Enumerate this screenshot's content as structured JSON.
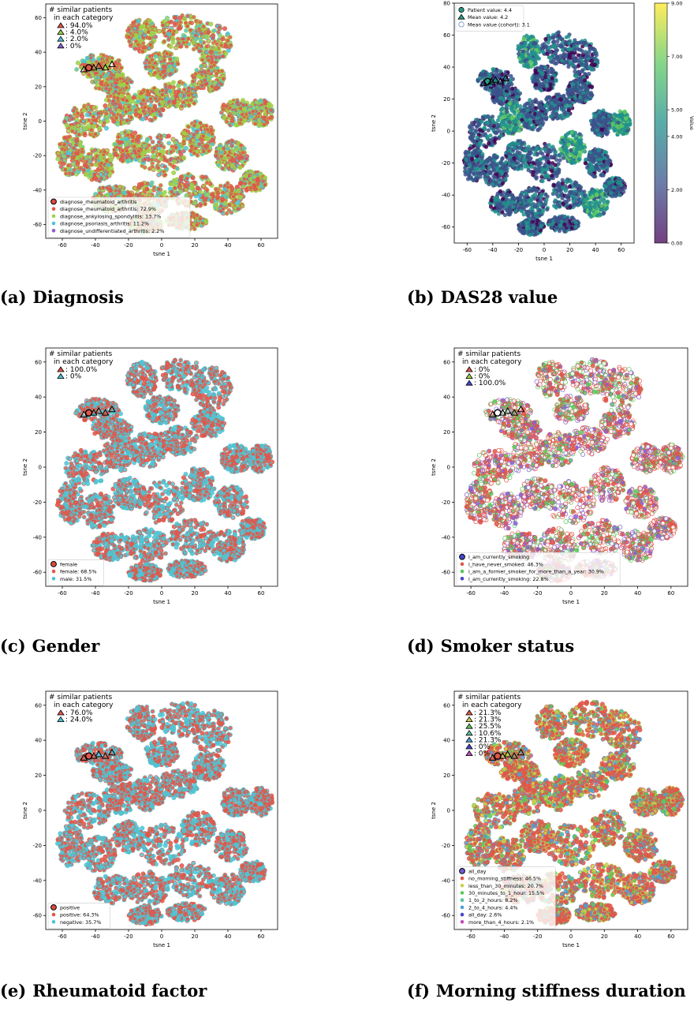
{
  "panels": [
    {
      "id": "a",
      "caption_label": "(a)",
      "caption_title": "Diagnosis",
      "xlabel": "tsne 1",
      "ylabel": "tsne 2",
      "xticks": [
        -60,
        -40,
        -20,
        0,
        20,
        40,
        60
      ],
      "yticks": [
        60,
        40,
        20,
        0,
        -20,
        -40,
        -60
      ],
      "inset_title": [
        "# similar patients",
        "in each category"
      ],
      "inset_entries": [
        {
          "text": ": 94.0%",
          "color": "#e0574a"
        },
        {
          "text": ": 4.0%",
          "color": "#9ed14a"
        },
        {
          "text": ": 2.0%",
          "color": "#4fc4d4"
        },
        {
          "text": ": 0%",
          "color": "#8a5fd0"
        }
      ],
      "legend": [
        {
          "text": "diagnose_rheumatoid_arthritis",
          "color": "#d94b3f",
          "header": true
        },
        {
          "text": "diagnose_rheumatoid_arthritis: 72.9%",
          "color": "#e0574a"
        },
        {
          "text": "diagnose_ankylosing_spondylitis: 13.7%",
          "color": "#9ed14a"
        },
        {
          "text": "diagnose_psoriasis_arthritis: 11.2%",
          "color": "#4fc4d4"
        },
        {
          "text": "diagnose_undifferentiated_arthritis: 2.2%",
          "color": "#8a5fd0"
        }
      ],
      "base_color": "#e0574a",
      "dot_colors": [
        "#9ed14a",
        "#9ed14a",
        "#e0574a",
        "#4fc4d4"
      ]
    },
    {
      "id": "b",
      "caption_label": "(b)",
      "caption_title": "DAS28 value",
      "xlabel": "tsne 1",
      "ylabel": "tsne 2",
      "xticks": [
        -60,
        -40,
        -20,
        0,
        20,
        40,
        60
      ],
      "yticks": [
        80,
        60,
        40,
        20,
        0,
        -20,
        -40,
        -60
      ],
      "legend": [
        {
          "text": "Patient value: 4.4",
          "color": "#2a9a86",
          "marker": "circle"
        },
        {
          "text": "Mean value: 4.2",
          "color": "#2a9a86",
          "marker": "triangle"
        },
        {
          "text": "Mean value (cohort): 3.1",
          "color": "#ffffff",
          "marker": "circle"
        }
      ],
      "colorbar_label": "Value",
      "colorbar_ticks": [
        "9.00",
        "7.00",
        "5.00",
        "4.00",
        "2.00",
        "0.00"
      ],
      "colorbar_colors": [
        "#440154",
        "#3b528b",
        "#21908c",
        "#5dc863",
        "#fde725"
      ]
    },
    {
      "id": "c",
      "caption_label": "(c)",
      "caption_title": "Gender",
      "xlabel": "tsne 1",
      "ylabel": "tsne 2",
      "xticks": [
        -60,
        -40,
        -20,
        0,
        20,
        40,
        60
      ],
      "yticks": [
        60,
        40,
        20,
        0,
        -20,
        -40,
        -60
      ],
      "inset_title": [
        "# similar patients",
        "in each category"
      ],
      "inset_entries": [
        {
          "text": ": 100.0%",
          "color": "#e0574a"
        },
        {
          "text": ": 0%",
          "color": "#4fc4d4"
        }
      ],
      "legend": [
        {
          "text": "female",
          "color": "#d94b3f",
          "header": true
        },
        {
          "text": "female: 68.5%",
          "color": "#e0574a"
        },
        {
          "text": "male: 31.5%",
          "color": "#4fc4d4"
        }
      ],
      "base_color": "#e0574a",
      "dot_colors": [
        "#4fc4d4",
        "#e0574a",
        "#4fc4d4"
      ]
    },
    {
      "id": "d",
      "caption_label": "(d)",
      "caption_title": "Smoker status",
      "xlabel": "tsne 1",
      "ylabel": "tsne 2",
      "xticks": [
        -60,
        -40,
        -20,
        0,
        20,
        40,
        60
      ],
      "yticks": [
        60,
        40,
        20,
        0,
        -20,
        -40,
        -60
      ],
      "inset_title": [
        "# similar patients",
        "in each category"
      ],
      "inset_entries": [
        {
          "text": ": 0%",
          "color": "#e0574a"
        },
        {
          "text": ": 0%",
          "color": "#9ed14a"
        },
        {
          "text": ": 100.0%",
          "color": "#4545d0"
        }
      ],
      "legend": [
        {
          "text": "i_am_currently_smoking",
          "color": "#4545d0",
          "header": true
        },
        {
          "text": "i_have_never_smoked: 46.3%",
          "color": "#e0574a"
        },
        {
          "text": "i_am_a_former_smoker_for_more_than_a_year: 30.9%",
          "color": "#5cc85c"
        },
        {
          "text": "i_am_currently_smoking: 22.8%",
          "color": "#4545d0"
        }
      ],
      "base_color": "#ffffff",
      "dot_colors": [
        "#e0574a",
        "#5cc85c",
        "#8a5fd0",
        "#e0574a"
      ]
    },
    {
      "id": "e",
      "caption_label": "(e)",
      "caption_title": "Rheumatoid factor",
      "xlabel": "tsne 1",
      "ylabel": "tsne 2",
      "xticks": [
        -60,
        -40,
        -20,
        0,
        20,
        40,
        60
      ],
      "yticks": [
        60,
        40,
        20,
        0,
        -20,
        -40,
        -60
      ],
      "inset_title": [
        "# similar patients",
        "in each category"
      ],
      "inset_entries": [
        {
          "text": ": 76.0%",
          "color": "#e0574a"
        },
        {
          "text": ": 24.0%",
          "color": "#4fc4d4"
        }
      ],
      "legend": [
        {
          "text": "positive",
          "color": "#d94b3f",
          "header": true
        },
        {
          "text": "positive: 64.3%",
          "color": "#e0574a"
        },
        {
          "text": "negative: 35.7%",
          "color": "#4fc4d4"
        }
      ],
      "base_color": "#e0574a",
      "dot_colors": [
        "#4fc4d4",
        "#4fc4d4",
        "#e0574a"
      ]
    },
    {
      "id": "f",
      "caption_label": "(f)",
      "caption_title": "Morning stiffness duration",
      "xlabel": "tsne 1",
      "ylabel": "tsne 2",
      "xticks": [
        -60,
        -40,
        -20,
        0,
        20,
        40,
        60
      ],
      "yticks": [
        60,
        40,
        20,
        0,
        -20,
        -40,
        -60
      ],
      "inset_title": [
        "# similar patients",
        "in each category"
      ],
      "inset_entries": [
        {
          "text": ": 21.3%",
          "color": "#e0574a"
        },
        {
          "text": ": 21.3%",
          "color": "#c8d24a"
        },
        {
          "text": ": 25.5%",
          "color": "#5cc85c"
        },
        {
          "text": ": 10.6%",
          "color": "#4fc4a0"
        },
        {
          "text": ": 21.3%",
          "color": "#4f9fd4"
        },
        {
          "text": ": 0%",
          "color": "#4545d0"
        },
        {
          "text": ": 0%",
          "color": "#c050c0"
        }
      ],
      "legend": [
        {
          "text": "all_day",
          "color": "#6a5fd0",
          "header": true
        },
        {
          "text": "no_morning_stiffness: 46.5%",
          "color": "#e0574a"
        },
        {
          "text": "less_than_30_minutes: 20.7%",
          "color": "#c8d24a"
        },
        {
          "text": "30_minutes_to_1_hour: 15.5%",
          "color": "#5cc85c"
        },
        {
          "text": "1_to_2_hours: 8.2%",
          "color": "#4fc4a0"
        },
        {
          "text": "2_to_4_hours: 4.4%",
          "color": "#4f9fd4"
        },
        {
          "text": "all_day: 2.6%",
          "color": "#4545d0"
        },
        {
          "text": "more_than_4_hours: 2.1%",
          "color": "#c050c0"
        }
      ],
      "base_color": "#e0574a",
      "dot_colors": [
        "#c8d24a",
        "#5cc85c",
        "#e0574a",
        "#4f9fd4",
        "#e0574a"
      ]
    }
  ],
  "chart_data": [
    {
      "type": "scatter",
      "panel": "a",
      "title": "",
      "xlabel": "tsne 1",
      "ylabel": "tsne 2",
      "xlim": [
        -70,
        70
      ],
      "ylim": [
        -68,
        68
      ],
      "series": [
        {
          "name": "diagnose_rheumatoid_arthritis: 72.9%"
        },
        {
          "name": "diagnose_ankylosing_spondylitis: 13.7%"
        },
        {
          "name": "diagnose_psoriasis_arthritis: 11.2%"
        },
        {
          "name": "diagnose_undifferentiated_arthritis: 2.2%"
        }
      ]
    },
    {
      "type": "scatter",
      "panel": "b",
      "title": "",
      "xlabel": "tsne 1",
      "ylabel": "tsne 2",
      "xlim": [
        -70,
        70
      ],
      "ylim": [
        -70,
        80
      ],
      "colorbar": [
        0,
        9
      ],
      "series": [
        {
          "name": "Patient value: 4.4"
        },
        {
          "name": "Mean value: 4.2"
        },
        {
          "name": "Mean value (cohort): 3.1"
        }
      ]
    },
    {
      "type": "scatter",
      "panel": "c",
      "title": "",
      "xlabel": "tsne 1",
      "ylabel": "tsne 2",
      "xlim": [
        -70,
        70
      ],
      "ylim": [
        -68,
        68
      ],
      "series": [
        {
          "name": "female: 68.5%"
        },
        {
          "name": "male: 31.5%"
        }
      ]
    },
    {
      "type": "scatter",
      "panel": "d",
      "title": "",
      "xlabel": "tsne 1",
      "ylabel": "tsne 2",
      "xlim": [
        -70,
        70
      ],
      "ylim": [
        -68,
        68
      ],
      "series": [
        {
          "name": "i_have_never_smoked: 46.3%"
        },
        {
          "name": "i_am_a_former_smoker_for_more_than_a_year: 30.9%"
        },
        {
          "name": "i_am_currently_smoking: 22.8%"
        }
      ]
    },
    {
      "type": "scatter",
      "panel": "e",
      "title": "",
      "xlabel": "tsne 1",
      "ylabel": "tsne 2",
      "xlim": [
        -70,
        70
      ],
      "ylim": [
        -68,
        68
      ],
      "series": [
        {
          "name": "positive: 64.3%"
        },
        {
          "name": "negative: 35.7%"
        }
      ]
    },
    {
      "type": "scatter",
      "panel": "f",
      "title": "",
      "xlabel": "tsne 1",
      "ylabel": "tsne 2",
      "xlim": [
        -70,
        70
      ],
      "ylim": [
        -68,
        68
      ],
      "series": [
        {
          "name": "no_morning_stiffness: 46.5%"
        },
        {
          "name": "less_than_30_minutes: 20.7%"
        },
        {
          "name": "30_minutes_to_1_hour: 15.5%"
        },
        {
          "name": "1_to_2_hours: 8.2%"
        },
        {
          "name": "2_to_4_hours: 4.4%"
        },
        {
          "name": "all_day: 2.6%"
        },
        {
          "name": "more_than_4_hours: 2.1%"
        }
      ]
    }
  ]
}
